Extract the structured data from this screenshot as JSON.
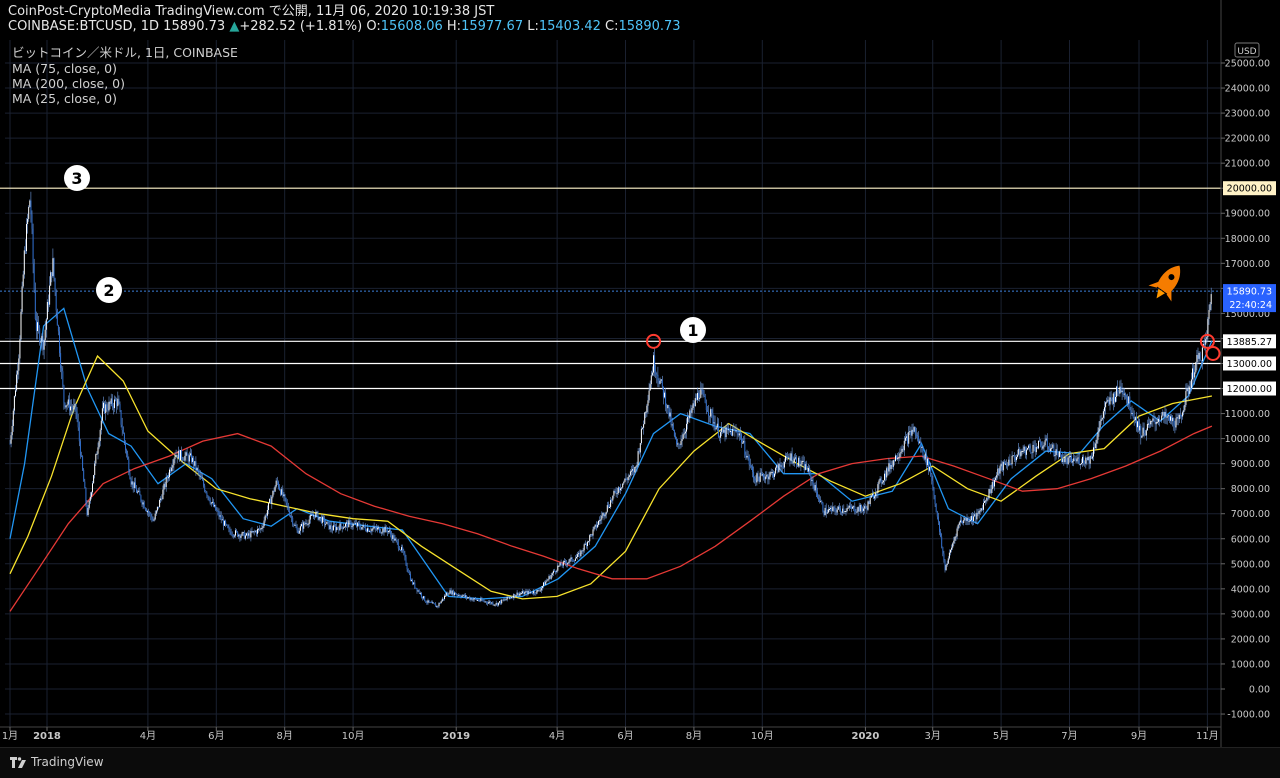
{
  "header": {
    "line1_prefix": "CoinPost-CryptoMedia TradingView.com で公開, 11月 06, 2020 10:19:38 JST",
    "symbol": "COINBASE:BTCUSD, 1D",
    "last": "15890.73",
    "change": "+282.52 (+1.81%)",
    "open_label": "O:",
    "open": "15608.06",
    "high_label": "H:",
    "high": "15977.67",
    "low_label": "L:",
    "low": "15403.42",
    "close_label": "C:",
    "close": "15890.73",
    "title": "ビットコイン／米ドル, 1日, COINBASE"
  },
  "indicators": [
    {
      "label": "MA (75, close, 0)",
      "color": "#f7e22c"
    },
    {
      "label": "MA (200, close, 0)",
      "color": "#e53935"
    },
    {
      "label": "MA (25, close, 0)",
      "color": "#2196f3"
    }
  ],
  "footer": {
    "brand": "TradingView"
  },
  "annotations": [
    {
      "label": "❸",
      "color": "#ffffff"
    },
    {
      "label": "❷",
      "color": "#ffffff"
    },
    {
      "label": "❶",
      "color": "#ffffff"
    }
  ],
  "chart_data": {
    "type": "line",
    "currency_label": "USD",
    "ylim": [
      -1000,
      25500
    ],
    "y_ticks": [
      -1000,
      0,
      1000,
      2000,
      3000,
      4000,
      5000,
      6000,
      7000,
      8000,
      9000,
      10000,
      11000,
      12000,
      13000,
      14000,
      15000,
      16000,
      17000,
      18000,
      19000,
      20000,
      21000,
      22000,
      23000,
      24000,
      25000
    ],
    "x_ticks": [
      {
        "label": "1月",
        "date": "2017-11-29"
      },
      {
        "label": "2018",
        "date": "2018-01-01"
      },
      {
        "label": "4月",
        "date": "2018-04-01"
      },
      {
        "label": "6月",
        "date": "2018-06-01"
      },
      {
        "label": "8月",
        "date": "2018-08-01"
      },
      {
        "label": "10月",
        "date": "2018-10-01"
      },
      {
        "label": "2019",
        "date": "2019-01-01"
      },
      {
        "label": "4月",
        "date": "2019-04-01"
      },
      {
        "label": "6月",
        "date": "2019-06-01"
      },
      {
        "label": "8月",
        "date": "2019-08-01"
      },
      {
        "label": "10月",
        "date": "2019-10-01"
      },
      {
        "label": "2020",
        "date": "2020-01-01"
      },
      {
        "label": "3月",
        "date": "2020-03-01"
      },
      {
        "label": "5月",
        "date": "2020-05-01"
      },
      {
        "label": "7月",
        "date": "2020-07-01"
      },
      {
        "label": "9月",
        "date": "2020-09-01"
      },
      {
        "label": "11月",
        "date": "2020-11-01"
      }
    ],
    "horizontal_levels": [
      {
        "value": 20000,
        "label": "20000.00",
        "color": "#fff2c6"
      },
      {
        "value": 13885.27,
        "label": "13885.27",
        "color": "#ffffff"
      },
      {
        "value": 13000,
        "label": "13000.00",
        "color": "#ffffff"
      },
      {
        "value": 12000,
        "label": "12000.00",
        "color": "#ffffff"
      }
    ],
    "last_price": {
      "value": 15890.73,
      "label": "15890.73",
      "countdown": "22:40:24"
    },
    "price_series": {
      "name": "BTCUSD",
      "color": "#3d7fd9",
      "x": [
        "2017-11-29",
        "2017-12-07",
        "2017-12-12",
        "2017-12-17",
        "2017-12-22",
        "2017-12-29",
        "2018-01-06",
        "2018-01-16",
        "2018-01-27",
        "2018-02-06",
        "2018-02-20",
        "2018-03-05",
        "2018-03-17",
        "2018-04-06",
        "2018-04-25",
        "2018-05-10",
        "2018-05-28",
        "2018-06-12",
        "2018-06-28",
        "2018-07-11",
        "2018-07-25",
        "2018-08-12",
        "2018-08-28",
        "2018-09-12",
        "2018-09-28",
        "2018-10-15",
        "2018-11-01",
        "2018-11-14",
        "2018-11-22",
        "2018-12-05",
        "2018-12-15",
        "2018-12-25",
        "2019-01-15",
        "2019-02-06",
        "2019-02-24",
        "2019-03-15",
        "2019-04-02",
        "2019-04-20",
        "2019-05-11",
        "2019-05-25",
        "2019-06-10",
        "2019-06-26",
        "2019-07-07",
        "2019-07-17",
        "2019-08-06",
        "2019-08-24",
        "2019-09-10",
        "2019-09-24",
        "2019-10-10",
        "2019-10-26",
        "2019-11-10",
        "2019-11-25",
        "2019-12-15",
        "2020-01-01",
        "2020-01-20",
        "2020-02-13",
        "2020-02-28",
        "2020-03-12",
        "2020-03-25",
        "2020-04-10",
        "2020-04-30",
        "2020-05-20",
        "2020-06-10",
        "2020-06-28",
        "2020-07-20",
        "2020-08-01",
        "2020-08-17",
        "2020-09-03",
        "2020-09-20",
        "2020-10-06",
        "2020-10-21",
        "2020-10-30",
        "2020-11-05"
      ],
      "values": [
        9800,
        13500,
        17500,
        19700,
        14500,
        13800,
        17100,
        11500,
        11100,
        6900,
        11200,
        11500,
        8300,
        6700,
        9400,
        9200,
        7400,
        6300,
        6100,
        6400,
        8300,
        6300,
        7000,
        6400,
        6600,
        6400,
        6350,
        5500,
        4300,
        3500,
        3300,
        3900,
        3600,
        3400,
        3800,
        3900,
        4900,
        5300,
        6900,
        8000,
        8800,
        13100,
        11500,
        9600,
        11900,
        10200,
        10300,
        8400,
        8600,
        9300,
        8800,
        7100,
        7200,
        7200,
        8700,
        10400,
        8700,
        4800,
        6700,
        6900,
        8800,
        9500,
        9800,
        9100,
        9200,
        11200,
        12100,
        10200,
        10900,
        10600,
        12900,
        13700,
        15890.73
      ]
    },
    "ma_series": [
      {
        "name": "MA (25, close, 0)",
        "color": "#2196f3",
        "x": [
          "2017-11-29",
          "2017-12-12",
          "2017-12-29",
          "2018-01-16",
          "2018-02-06",
          "2018-02-25",
          "2018-03-17",
          "2018-04-10",
          "2018-05-05",
          "2018-05-28",
          "2018-06-25",
          "2018-07-20",
          "2018-08-12",
          "2018-09-10",
          "2018-10-15",
          "2018-11-14",
          "2018-12-05",
          "2018-12-25",
          "2019-01-25",
          "2019-03-01",
          "2019-04-02",
          "2019-05-05",
          "2019-06-01",
          "2019-06-26",
          "2019-07-20",
          "2019-08-20",
          "2019-09-20",
          "2019-10-20",
          "2019-11-20",
          "2019-12-20",
          "2020-01-25",
          "2020-02-20",
          "2020-03-15",
          "2020-04-10",
          "2020-05-10",
          "2020-06-10",
          "2020-07-10",
          "2020-07-31",
          "2020-08-25",
          "2020-09-20",
          "2020-10-15",
          "2020-11-05"
        ],
        "values": [
          6000,
          9000,
          14500,
          15200,
          12000,
          10200,
          9700,
          8200,
          9000,
          8400,
          6800,
          6500,
          7200,
          6700,
          6500,
          6350,
          5000,
          3700,
          3600,
          3700,
          4400,
          5700,
          7800,
          10200,
          11000,
          10500,
          10200,
          8600,
          8600,
          7500,
          7900,
          9800,
          7200,
          6600,
          8400,
          9500,
          9400,
          10500,
          11500,
          10700,
          11700,
          13900
        ]
      },
      {
        "name": "MA (75, close, 0)",
        "color": "#f7e22c",
        "x": [
          "2017-11-29",
          "2017-12-15",
          "2018-01-05",
          "2018-01-25",
          "2018-02-15",
          "2018-03-10",
          "2018-04-01",
          "2018-05-01",
          "2018-06-01",
          "2018-07-01",
          "2018-08-01",
          "2018-09-01",
          "2018-10-01",
          "2018-11-01",
          "2018-12-01",
          "2019-01-01",
          "2019-02-01",
          "2019-03-01",
          "2019-04-01",
          "2019-05-01",
          "2019-06-01",
          "2019-07-01",
          "2019-08-01",
          "2019-09-01",
          "2019-10-01",
          "2019-11-01",
          "2019-12-01",
          "2020-01-01",
          "2020-02-01",
          "2020-03-01",
          "2020-04-01",
          "2020-05-01",
          "2020-06-01",
          "2020-07-01",
          "2020-08-01",
          "2020-09-01",
          "2020-10-01",
          "2020-11-05"
        ],
        "values": [
          4600,
          6100,
          8500,
          11200,
          13300,
          12300,
          10300,
          9100,
          8000,
          7600,
          7300,
          7000,
          6800,
          6700,
          5700,
          4800,
          3900,
          3600,
          3700,
          4200,
          5500,
          8000,
          9500,
          10600,
          9800,
          9000,
          8300,
          7700,
          8200,
          8900,
          8000,
          7500,
          8500,
          9400,
          9600,
          10900,
          11400,
          11700
        ]
      },
      {
        "name": "MA (200, close, 0)",
        "color": "#e53935",
        "x": [
          "2017-11-29",
          "2017-12-20",
          "2018-01-20",
          "2018-02-20",
          "2018-03-20",
          "2018-04-20",
          "2018-05-20",
          "2018-06-20",
          "2018-07-20",
          "2018-08-20",
          "2018-09-20",
          "2018-10-20",
          "2018-11-20",
          "2018-12-20",
          "2019-01-20",
          "2019-02-20",
          "2019-03-20",
          "2019-04-20",
          "2019-05-20",
          "2019-06-20",
          "2019-07-20",
          "2019-08-20",
          "2019-09-20",
          "2019-10-20",
          "2019-11-20",
          "2019-12-20",
          "2020-01-20",
          "2020-02-20",
          "2020-03-20",
          "2020-04-20",
          "2020-05-20",
          "2020-06-20",
          "2020-07-20",
          "2020-08-20",
          "2020-09-20",
          "2020-10-20",
          "2020-11-05"
        ],
        "values": [
          3100,
          4500,
          6600,
          8200,
          8800,
          9300,
          9900,
          10200,
          9700,
          8600,
          7800,
          7300,
          6900,
          6600,
          6200,
          5700,
          5300,
          4800,
          4400,
          4400,
          4900,
          5700,
          6700,
          7700,
          8600,
          9000,
          9200,
          9300,
          8900,
          8400,
          7900,
          8000,
          8400,
          8900,
          9500,
          10200,
          10500
        ]
      }
    ],
    "markers": [
      {
        "date": "2019-06-26",
        "value": 13885,
        "type": "circle",
        "color": "#ff3b30"
      },
      {
        "date": "2020-11-01",
        "value": 13885,
        "type": "circle",
        "color": "#ff3b30"
      },
      {
        "date": "2020-11-06",
        "value": 13400,
        "type": "circle",
        "color": "#ff3b30"
      }
    ]
  }
}
